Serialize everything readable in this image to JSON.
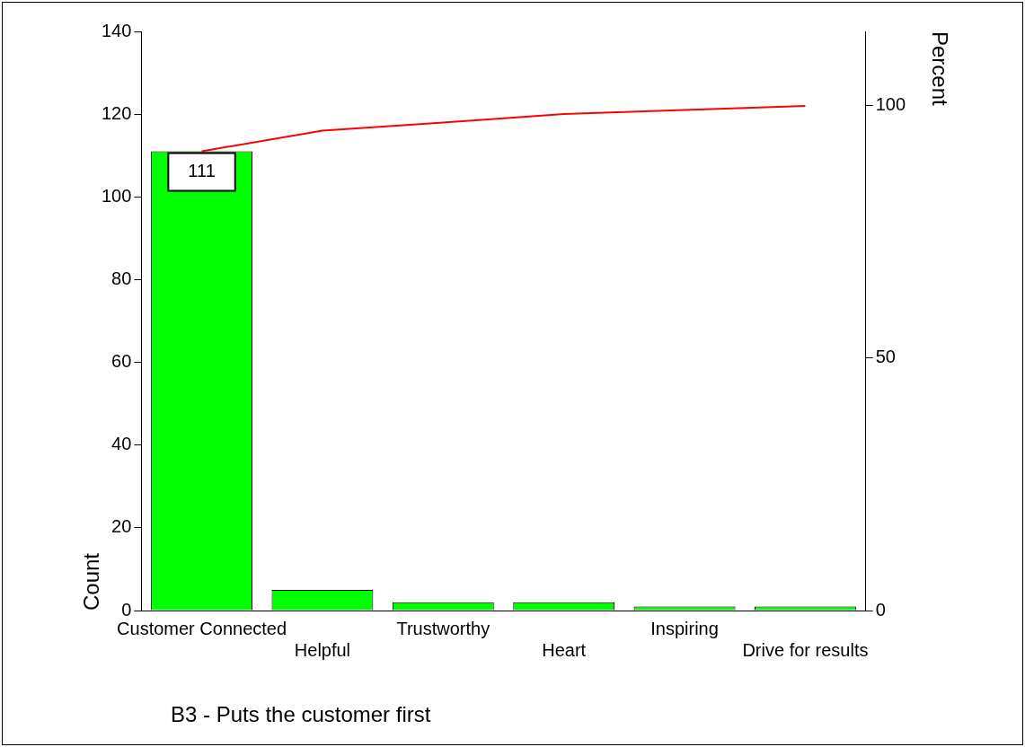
{
  "chart_data": {
    "type": "bar",
    "title": "B3 - Puts the customer first",
    "ylabel": "Count",
    "y2label": "Percent",
    "categories": [
      "Customer Connected",
      "Helpful",
      "Trustworthy",
      "Heart",
      "Inspiring",
      "Drive for results"
    ],
    "series": [
      {
        "color": "#00ff00",
        "values": [
          111,
          5,
          2,
          2,
          1,
          1
        ],
        "value_labels": [
          "111",
          null,
          null,
          null,
          null,
          null
        ]
      },
      {
        "type": "line",
        "axis": "y2",
        "color": "#ff0000",
        "values": [
          91.0,
          95.1,
          96.7,
          98.4,
          99.2,
          100
        ]
      }
    ],
    "ylim": [
      0,
      140
    ],
    "yticks": [
      0,
      20,
      40,
      60,
      80,
      100,
      120,
      140
    ],
    "y2lim": [
      0,
      114.75
    ],
    "y2ticks": [
      0,
      50,
      100
    ],
    "grid": false,
    "legend": false,
    "marker": "none",
    "line_style": "solid"
  }
}
